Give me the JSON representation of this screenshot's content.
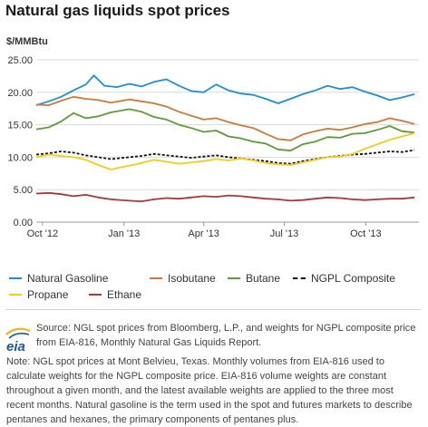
{
  "chart_data": {
    "type": "line",
    "title": "Natural gas liquids spot prices",
    "ylabel": "$/MMBtu",
    "ylim": [
      0,
      25
    ],
    "yticks": [
      "0.00",
      "5.00",
      "10.00",
      "15.00",
      "20.00",
      "25.00"
    ],
    "x_range": [
      "2012-09-24",
      "2013-11-30"
    ],
    "xticks": [
      {
        "label": "Oct '12",
        "date": "2012-10-01"
      },
      {
        "label": "Jan '13",
        "date": "2013-01-01"
      },
      {
        "label": "Apr '13",
        "date": "2013-04-01"
      },
      {
        "label": "Jul '13",
        "date": "2013-07-01"
      },
      {
        "label": "Oct '13",
        "date": "2013-10-01"
      }
    ],
    "grid": true,
    "legend_position": "bottom",
    "series": [
      {
        "name": "Natural Gasoline",
        "color": "#1f8fd4",
        "dashed": false,
        "points": [
          [
            "2012-09-24",
            18.0
          ],
          [
            "2012-10-08",
            18.6
          ],
          [
            "2012-10-22",
            19.3
          ],
          [
            "2012-11-05",
            20.3
          ],
          [
            "2012-11-19",
            21.2
          ],
          [
            "2012-11-28",
            22.6
          ],
          [
            "2012-12-10",
            21.0
          ],
          [
            "2012-12-24",
            20.8
          ],
          [
            "2013-01-07",
            21.3
          ],
          [
            "2013-01-21",
            20.9
          ],
          [
            "2013-02-04",
            21.6
          ],
          [
            "2013-02-18",
            22.0
          ],
          [
            "2013-03-04",
            21.0
          ],
          [
            "2013-03-18",
            20.2
          ],
          [
            "2013-04-01",
            20.0
          ],
          [
            "2013-04-15",
            21.2
          ],
          [
            "2013-04-29",
            20.3
          ],
          [
            "2013-05-13",
            19.8
          ],
          [
            "2013-05-27",
            19.6
          ],
          [
            "2013-06-10",
            19.0
          ],
          [
            "2013-06-24",
            18.3
          ],
          [
            "2013-07-08",
            19.0
          ],
          [
            "2013-07-22",
            19.7
          ],
          [
            "2013-08-05",
            20.3
          ],
          [
            "2013-08-19",
            21.0
          ],
          [
            "2013-09-02",
            20.5
          ],
          [
            "2013-09-16",
            20.8
          ],
          [
            "2013-09-30",
            20.1
          ],
          [
            "2013-10-14",
            19.5
          ],
          [
            "2013-10-28",
            18.8
          ],
          [
            "2013-11-11",
            19.2
          ],
          [
            "2013-11-25",
            19.7
          ]
        ]
      },
      {
        "name": "Isobutane",
        "color": "#cc7a3c",
        "dashed": false,
        "points": [
          [
            "2012-09-24",
            18.1
          ],
          [
            "2012-10-08",
            18.0
          ],
          [
            "2012-10-22",
            18.7
          ],
          [
            "2012-11-05",
            19.3
          ],
          [
            "2012-11-19",
            19.0
          ],
          [
            "2012-12-03",
            18.8
          ],
          [
            "2012-12-17",
            18.4
          ],
          [
            "2013-01-07",
            18.9
          ],
          [
            "2013-01-21",
            18.6
          ],
          [
            "2013-02-04",
            18.3
          ],
          [
            "2013-02-18",
            17.8
          ],
          [
            "2013-03-04",
            17.0
          ],
          [
            "2013-03-18",
            16.4
          ],
          [
            "2013-04-01",
            15.8
          ],
          [
            "2013-04-15",
            16.0
          ],
          [
            "2013-04-29",
            15.4
          ],
          [
            "2013-05-13",
            14.9
          ],
          [
            "2013-05-27",
            14.5
          ],
          [
            "2013-06-10",
            13.6
          ],
          [
            "2013-06-24",
            12.8
          ],
          [
            "2013-07-08",
            12.6
          ],
          [
            "2013-07-22",
            13.5
          ],
          [
            "2013-08-05",
            14.0
          ],
          [
            "2013-08-19",
            14.4
          ],
          [
            "2013-09-02",
            14.2
          ],
          [
            "2013-09-16",
            14.6
          ],
          [
            "2013-09-30",
            15.1
          ],
          [
            "2013-10-14",
            15.4
          ],
          [
            "2013-10-28",
            16.0
          ],
          [
            "2013-11-11",
            15.6
          ],
          [
            "2013-11-25",
            15.1
          ]
        ]
      },
      {
        "name": "Butane",
        "color": "#5f9a3b",
        "dashed": false,
        "points": [
          [
            "2012-09-24",
            14.3
          ],
          [
            "2012-10-08",
            14.6
          ],
          [
            "2012-10-22",
            15.5
          ],
          [
            "2012-11-05",
            16.8
          ],
          [
            "2012-11-19",
            16.0
          ],
          [
            "2012-12-03",
            16.3
          ],
          [
            "2012-12-17",
            16.9
          ],
          [
            "2013-01-07",
            17.4
          ],
          [
            "2013-01-21",
            17.0
          ],
          [
            "2013-02-04",
            16.2
          ],
          [
            "2013-02-18",
            15.8
          ],
          [
            "2013-03-04",
            15.0
          ],
          [
            "2013-03-18",
            14.5
          ],
          [
            "2013-04-01",
            13.9
          ],
          [
            "2013-04-15",
            14.1
          ],
          [
            "2013-04-29",
            13.2
          ],
          [
            "2013-05-13",
            12.9
          ],
          [
            "2013-05-27",
            12.4
          ],
          [
            "2013-06-10",
            12.1
          ],
          [
            "2013-06-24",
            11.2
          ],
          [
            "2013-07-08",
            11.0
          ],
          [
            "2013-07-22",
            12.0
          ],
          [
            "2013-08-05",
            12.4
          ],
          [
            "2013-08-19",
            13.1
          ],
          [
            "2013-09-02",
            13.0
          ],
          [
            "2013-09-16",
            13.6
          ],
          [
            "2013-09-30",
            13.7
          ],
          [
            "2013-10-14",
            14.2
          ],
          [
            "2013-10-28",
            14.8
          ],
          [
            "2013-11-11",
            14.0
          ],
          [
            "2013-11-25",
            13.8
          ]
        ]
      },
      {
        "name": "NGPL Composite",
        "color": "#111111",
        "dashed": true,
        "points": [
          [
            "2012-09-24",
            10.4
          ],
          [
            "2012-10-08",
            10.6
          ],
          [
            "2012-10-22",
            10.9
          ],
          [
            "2012-11-05",
            10.7
          ],
          [
            "2012-11-19",
            10.3
          ],
          [
            "2012-12-03",
            10.0
          ],
          [
            "2012-12-17",
            9.7
          ],
          [
            "2013-01-07",
            10.0
          ],
          [
            "2013-01-21",
            10.2
          ],
          [
            "2013-02-04",
            10.5
          ],
          [
            "2013-02-18",
            10.3
          ],
          [
            "2013-03-04",
            10.1
          ],
          [
            "2013-03-18",
            9.9
          ],
          [
            "2013-04-01",
            10.1
          ],
          [
            "2013-04-15",
            10.3
          ],
          [
            "2013-04-29",
            10.0
          ],
          [
            "2013-05-13",
            9.8
          ],
          [
            "2013-05-27",
            9.6
          ],
          [
            "2013-06-10",
            9.4
          ],
          [
            "2013-06-24",
            9.1
          ],
          [
            "2013-07-08",
            9.0
          ],
          [
            "2013-07-22",
            9.4
          ],
          [
            "2013-08-05",
            9.7
          ],
          [
            "2013-08-19",
            10.0
          ],
          [
            "2013-09-02",
            10.2
          ],
          [
            "2013-09-16",
            10.4
          ],
          [
            "2013-09-30",
            10.5
          ],
          [
            "2013-10-14",
            10.7
          ],
          [
            "2013-10-28",
            10.9
          ],
          [
            "2013-11-11",
            10.8
          ],
          [
            "2013-11-25",
            11.1
          ]
        ]
      },
      {
        "name": "Propane",
        "color": "#f2cc1f",
        "dashed": false,
        "points": [
          [
            "2012-09-24",
            10.0
          ],
          [
            "2012-10-08",
            10.4
          ],
          [
            "2012-10-22",
            10.2
          ],
          [
            "2012-11-05",
            10.0
          ],
          [
            "2012-11-19",
            9.6
          ],
          [
            "2012-12-03",
            8.8
          ],
          [
            "2012-12-17",
            8.1
          ],
          [
            "2013-01-07",
            8.7
          ],
          [
            "2013-01-21",
            9.1
          ],
          [
            "2013-02-04",
            9.6
          ],
          [
            "2013-02-18",
            9.3
          ],
          [
            "2013-03-04",
            9.0
          ],
          [
            "2013-03-18",
            9.2
          ],
          [
            "2013-04-01",
            9.4
          ],
          [
            "2013-04-15",
            9.7
          ],
          [
            "2013-04-29",
            9.5
          ],
          [
            "2013-05-13",
            9.8
          ],
          [
            "2013-05-27",
            9.5
          ],
          [
            "2013-06-10",
            9.1
          ],
          [
            "2013-06-24",
            8.9
          ],
          [
            "2013-07-08",
            8.8
          ],
          [
            "2013-07-22",
            9.2
          ],
          [
            "2013-08-05",
            9.6
          ],
          [
            "2013-08-19",
            10.0
          ],
          [
            "2013-09-02",
            10.1
          ],
          [
            "2013-09-16",
            10.5
          ],
          [
            "2013-09-30",
            11.3
          ],
          [
            "2013-10-14",
            12.0
          ],
          [
            "2013-10-28",
            12.7
          ],
          [
            "2013-11-11",
            13.2
          ],
          [
            "2013-11-25",
            13.7
          ]
        ]
      },
      {
        "name": "Ethane",
        "color": "#a33a3a",
        "dashed": false,
        "points": [
          [
            "2012-09-24",
            4.4
          ],
          [
            "2012-10-08",
            4.5
          ],
          [
            "2012-10-22",
            4.3
          ],
          [
            "2012-11-05",
            4.0
          ],
          [
            "2012-11-19",
            4.2
          ],
          [
            "2012-12-03",
            3.8
          ],
          [
            "2012-12-17",
            3.5
          ],
          [
            "2013-01-07",
            3.3
          ],
          [
            "2013-01-21",
            3.2
          ],
          [
            "2013-02-04",
            3.5
          ],
          [
            "2013-02-18",
            3.7
          ],
          [
            "2013-03-04",
            3.6
          ],
          [
            "2013-03-18",
            3.8
          ],
          [
            "2013-04-01",
            4.0
          ],
          [
            "2013-04-15",
            3.9
          ],
          [
            "2013-04-29",
            4.1
          ],
          [
            "2013-05-13",
            4.0
          ],
          [
            "2013-05-27",
            3.8
          ],
          [
            "2013-06-10",
            3.6
          ],
          [
            "2013-06-24",
            3.5
          ],
          [
            "2013-07-08",
            3.3
          ],
          [
            "2013-07-22",
            3.4
          ],
          [
            "2013-08-05",
            3.6
          ],
          [
            "2013-08-19",
            3.8
          ],
          [
            "2013-09-02",
            3.7
          ],
          [
            "2013-09-16",
            3.5
          ],
          [
            "2013-09-30",
            3.4
          ],
          [
            "2013-10-14",
            3.5
          ],
          [
            "2013-10-28",
            3.6
          ],
          [
            "2013-11-11",
            3.6
          ],
          [
            "2013-11-25",
            3.8
          ]
        ]
      }
    ]
  },
  "source_text": "Source: NGL spot prices from Bloomberg, L.P., and weights for NGPL composite price from EIA-816, Monthly Natural Gas Liquids Report.",
  "note_text": "Note: NGL spot prices at Mont Belvieu, Texas. Monthly volumes from EIA-816 used to calculate weights for the NGPL composite price. EIA-816 volume weights are constant throughout a given month, and the latest available weights are applied to the three most recent months. Natural gasoline is the term used in the spot and futures markets to describe pentanes and hexanes, the primary components of pentanes plus.",
  "logo": {
    "text": "eia",
    "color": "#1a5a96",
    "accent_color": "#f5b41a"
  }
}
